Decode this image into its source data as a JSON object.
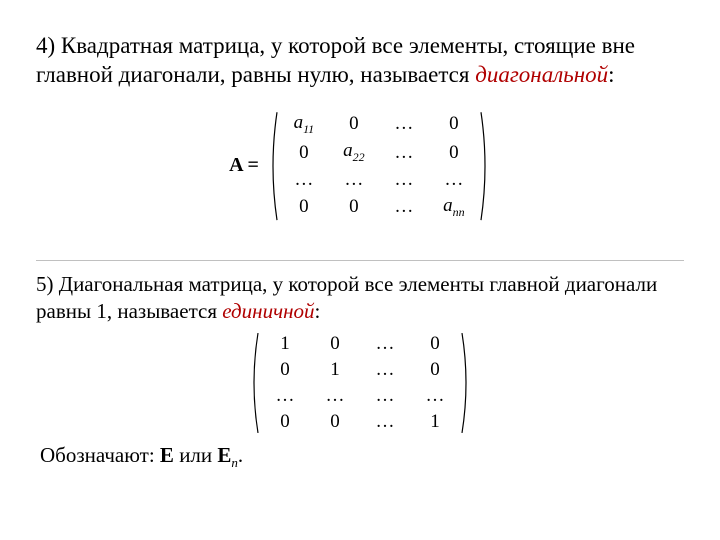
{
  "colors": {
    "text": "#000000",
    "term": "#b00000",
    "rule": "#c0c0c0",
    "bg": "#ffffff"
  },
  "typography": {
    "body_fontsize_pt": 17,
    "small_fontsize_pt": 16,
    "family": "Times New Roman"
  },
  "item4": {
    "lead": "4) Квадратная матрица, у которой все элементы, стоящие вне главной диагонали, равны нулю, называется ",
    "term": "диагональной",
    "colon": ":"
  },
  "matrixA": {
    "lhs": "A =",
    "rows": [
      [
        "a11",
        "0",
        "…",
        "0"
      ],
      [
        "0",
        "a22",
        "…",
        "0"
      ],
      [
        "…",
        "…",
        "…",
        "…"
      ],
      [
        "0",
        "0",
        "…",
        "ann"
      ]
    ],
    "entry_style": {
      "a11": "italic-sub",
      "a22": "italic-sub",
      "ann": "italic-sub"
    }
  },
  "item5": {
    "lead": "5) Диагональная матрица, у которой все элементы главной диагонали равны 1, называется ",
    "term": "единичной",
    "colon": ":"
  },
  "matrixE": {
    "rows": [
      [
        "1",
        "0",
        "…",
        "0"
      ],
      [
        "0",
        "1",
        "…",
        "0"
      ],
      [
        "…",
        "…",
        "…",
        "…"
      ],
      [
        "0",
        "0",
        "…",
        "1"
      ]
    ]
  },
  "denote": {
    "label": "Обозначают:  ",
    "E": "E",
    "or": "  или  ",
    "En_E": "E",
    "En_n": "n",
    "dot": "."
  }
}
